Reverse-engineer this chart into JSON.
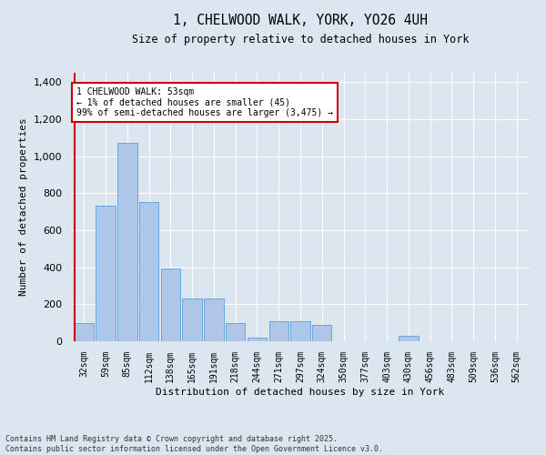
{
  "title_line1": "1, CHELWOOD WALK, YORK, YO26 4UH",
  "title_line2": "Size of property relative to detached houses in York",
  "xlabel": "Distribution of detached houses by size in York",
  "ylabel": "Number of detached properties",
  "categories": [
    "32sqm",
    "59sqm",
    "85sqm",
    "112sqm",
    "138sqm",
    "165sqm",
    "191sqm",
    "218sqm",
    "244sqm",
    "271sqm",
    "297sqm",
    "324sqm",
    "350sqm",
    "377sqm",
    "403sqm",
    "430sqm",
    "456sqm",
    "483sqm",
    "509sqm",
    "536sqm",
    "562sqm"
  ],
  "values": [
    100,
    730,
    1070,
    750,
    395,
    230,
    230,
    100,
    20,
    110,
    110,
    90,
    0,
    0,
    0,
    30,
    0,
    0,
    0,
    0,
    0
  ],
  "bar_color": "#aec6e8",
  "bar_edge_color": "#5a9fd4",
  "annotation_text_line1": "1 CHELWOOD WALK: 53sqm",
  "annotation_text_line2": "← 1% of detached houses are smaller (45)",
  "annotation_text_line3": "99% of semi-detached houses are larger (3,475) →",
  "vline_color": "#cc0000",
  "annotation_box_edge_color": "#cc0000",
  "ylim": [
    0,
    1450
  ],
  "yticks": [
    0,
    200,
    400,
    600,
    800,
    1000,
    1200,
    1400
  ],
  "footer_line1": "Contains HM Land Registry data © Crown copyright and database right 2025.",
  "footer_line2": "Contains public sector information licensed under the Open Government Licence v3.0.",
  "background_color": "#dce6f0",
  "plot_bg_color": "#dce6f0",
  "grid_color": "#ffffff"
}
